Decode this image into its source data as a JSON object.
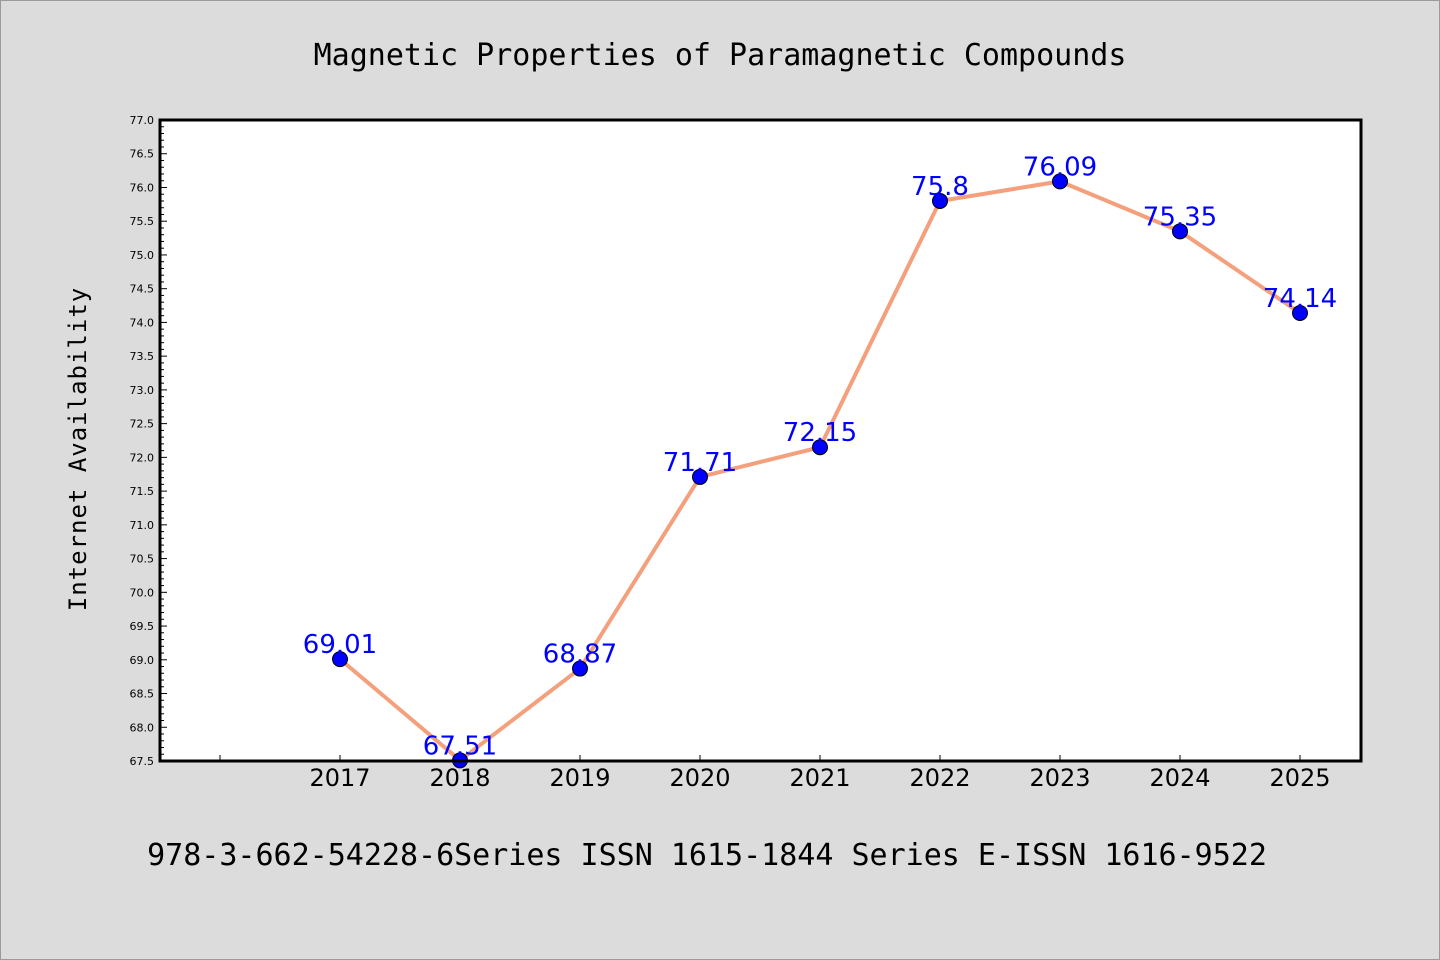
{
  "title": "Magnetic Properties of Paramagnetic Compounds",
  "footer": "978-3-662-54228-6Series ISSN 1615-1844 Series E-ISSN 1616-9522",
  "colors": {
    "background": "#dcdcdc",
    "plot_background": "#ffffff",
    "line": "#f4a07c",
    "marker": "#0000ff",
    "label": "#0000ff"
  },
  "chart_data": {
    "type": "line",
    "title": "Magnetic Properties of Paramagnetic Compounds",
    "xlabel": "",
    "ylabel": "Internet Availability",
    "ylim": [
      67.5,
      77.0
    ],
    "y_tick_step": 0.5,
    "y_ticks": [
      "67.5",
      "68.0",
      "68.5",
      "69.0",
      "69.5",
      "70.0",
      "70.5",
      "71.0",
      "71.5",
      "72.0",
      "72.5",
      "73.0",
      "73.5",
      "74.0",
      "74.5",
      "75.0",
      "75.5",
      "76.0",
      "76.5",
      "77.0"
    ],
    "categories": [
      "2017",
      "2018",
      "2019",
      "2020",
      "2021",
      "2022",
      "2023",
      "2024",
      "2025"
    ],
    "series": [
      {
        "values": [
          69.01,
          67.51,
          68.87,
          71.71,
          72.15,
          75.8,
          76.09,
          75.35,
          74.14
        ],
        "labels": [
          "69.01",
          "67.51",
          "68.87",
          "71.71",
          "72.15",
          "75.8",
          "76.09",
          "75.35",
          "74.14"
        ]
      }
    ],
    "data_labels": true,
    "grid": false,
    "legend": "none"
  }
}
